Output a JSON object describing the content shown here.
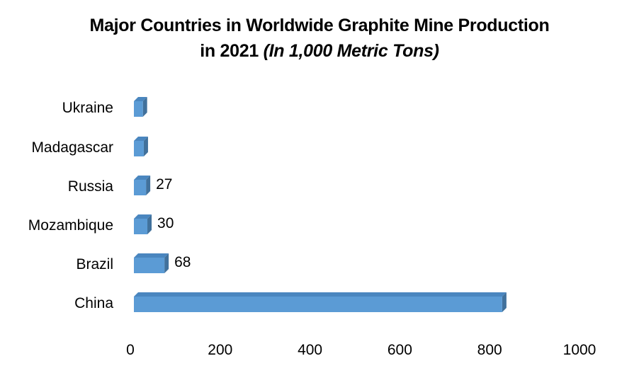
{
  "title": {
    "line1": "Major Countries in Worldwide Graphite Mine Production",
    "line2_plain": "in 2021 ",
    "line2_italic": "(In 1,000 Metric Tons)"
  },
  "colors": {
    "bar_front": "#5b9bd5",
    "bar_top": "#4a86bf",
    "bar_side": "#41719c"
  },
  "chart_data": {
    "type": "bar",
    "orientation": "horizontal",
    "style": "3d",
    "title": "Major Countries in Worldwide Graphite Mine Production in 2021 (In 1,000 Metric Tons)",
    "xlabel": "",
    "ylabel": "",
    "categories": [
      "China",
      "Brazil",
      "Mozambique",
      "Russia",
      "Madagascar",
      "Ukraine"
    ],
    "values": [
      820,
      68,
      30,
      27,
      22,
      20
    ],
    "data_labels": [
      "",
      "68",
      "30",
      "27",
      "",
      ""
    ],
    "xlim": [
      0,
      1000
    ],
    "x_ticks": [
      "0",
      "200",
      "400",
      "600",
      "800",
      "1000"
    ],
    "grid": false,
    "legend": "none"
  }
}
